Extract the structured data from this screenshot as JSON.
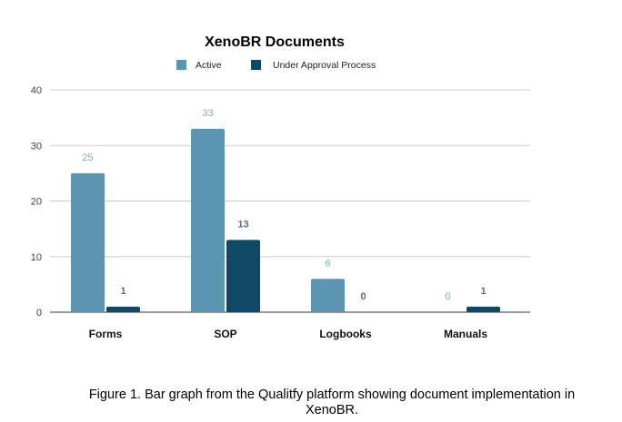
{
  "chart_data": {
    "type": "bar",
    "title": "XenoBR Documents",
    "categories": [
      "Forms",
      "SOP",
      "Logbooks",
      "Manuals"
    ],
    "series": [
      {
        "name": "Active",
        "values": [
          25,
          33,
          6,
          0
        ]
      },
      {
        "name": "Under Approval Process",
        "values": [
          1,
          13,
          0,
          1
        ]
      }
    ],
    "xlabel": "",
    "ylabel": "",
    "ylim": [
      0,
      40
    ],
    "yticks": [
      0,
      10,
      20,
      30,
      40
    ],
    "grid": true,
    "legend_position": "top",
    "colors": {
      "Active": "#5b95b2",
      "Under Approval Process": "#0e4965",
      "active_label": "#7aa9c8",
      "approval_label": "#4f7287"
    }
  },
  "caption": {
    "line1": "Figure 1.  Bar graph from the Qualitfy platform showing document implementation in",
    "line2": "XenoBR."
  }
}
